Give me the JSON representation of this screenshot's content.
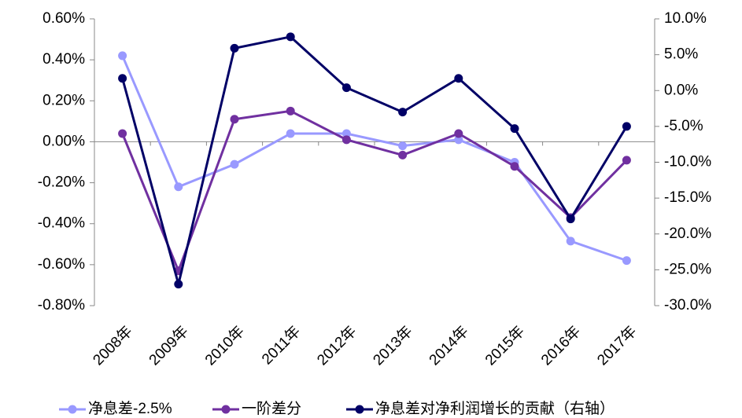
{
  "chart_data": {
    "type": "line",
    "categories": [
      "2008年",
      "2009年",
      "2010年",
      "2011年",
      "2012年",
      "2013年",
      "2014年",
      "2015年",
      "2016年",
      "2017年"
    ],
    "series": [
      {
        "name": "净息差-2.5%",
        "color": "#9999ff",
        "values": [
          0.42,
          -0.22,
          -0.11,
          0.04,
          0.04,
          -0.02,
          0.01,
          -0.1,
          -0.485,
          -0.58
        ]
      },
      {
        "name": "一阶差分",
        "color": "#7030a0",
        "values": [
          0.04,
          -0.63,
          0.11,
          0.15,
          0.01,
          -0.065,
          0.04,
          -0.12,
          -0.37,
          -0.09
        ]
      },
      {
        "name": "净息差对净利润增长的贡献（右轴）",
        "color": "#000066",
        "axis": "y2",
        "values": [
          1.7,
          -27.0,
          5.9,
          7.5,
          0.4,
          -3.0,
          1.7,
          -5.3,
          -17.9,
          -5.0
        ]
      }
    ],
    "ylim": [
      -0.8,
      0.6
    ],
    "yticks": [
      {
        "value": -0.8,
        "label": "-0.80%"
      },
      {
        "value": -0.6,
        "label": "-0.60%"
      },
      {
        "value": -0.4,
        "label": "-0.40%"
      },
      {
        "value": -0.2,
        "label": "-0.20%"
      },
      {
        "value": 0,
        "label": "0.00%"
      },
      {
        "value": 0.2,
        "label": "0.20%"
      },
      {
        "value": 0.4,
        "label": "0.40%"
      },
      {
        "value": 0.6,
        "label": "0.60%"
      }
    ],
    "y2lim": [
      -30,
      10
    ],
    "y2ticks": [
      {
        "value": -30,
        "label": "-30.0%"
      },
      {
        "value": -25,
        "label": "-25.0%"
      },
      {
        "value": -20,
        "label": "-20.0%"
      },
      {
        "value": -15,
        "label": "-15.0%"
      },
      {
        "value": -10,
        "label": "-10.0%"
      },
      {
        "value": -5,
        "label": "-5.0%"
      },
      {
        "value": 0,
        "label": "0.0%"
      },
      {
        "value": 5,
        "label": "5.0%"
      },
      {
        "value": 10,
        "label": "10.0%"
      }
    ],
    "legend": "bottom"
  }
}
